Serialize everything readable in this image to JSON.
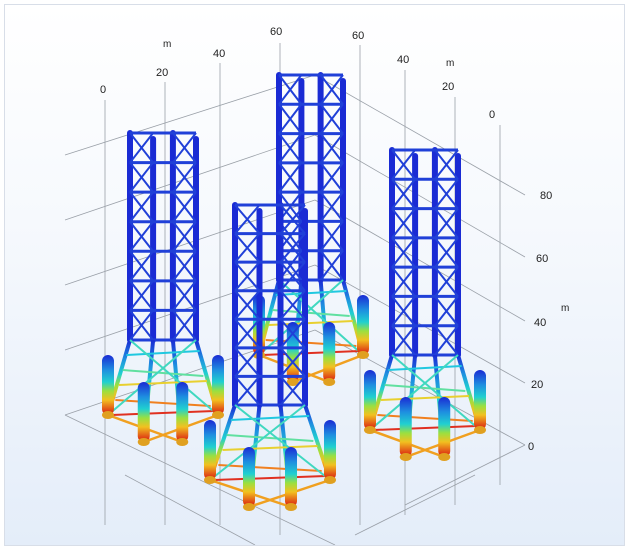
{
  "graphics": {
    "x_axis": {
      "ticks": [
        "0",
        "20",
        "40",
        "60"
      ],
      "unit": "m"
    },
    "y_axis": {
      "ticks": [
        "60",
        "40",
        "20",
        "0"
      ],
      "unit": "m"
    },
    "z_axis": {
      "ticks": [
        "80",
        "60",
        "40",
        "20",
        "0"
      ],
      "unit": "m"
    },
    "colors": {
      "structure_low": "#1a2bd4",
      "structure_high": "#d81010",
      "grid_line": "#9aa0a8",
      "background_top": "#ffffff",
      "background_bottom": "#e4edf9"
    }
  }
}
